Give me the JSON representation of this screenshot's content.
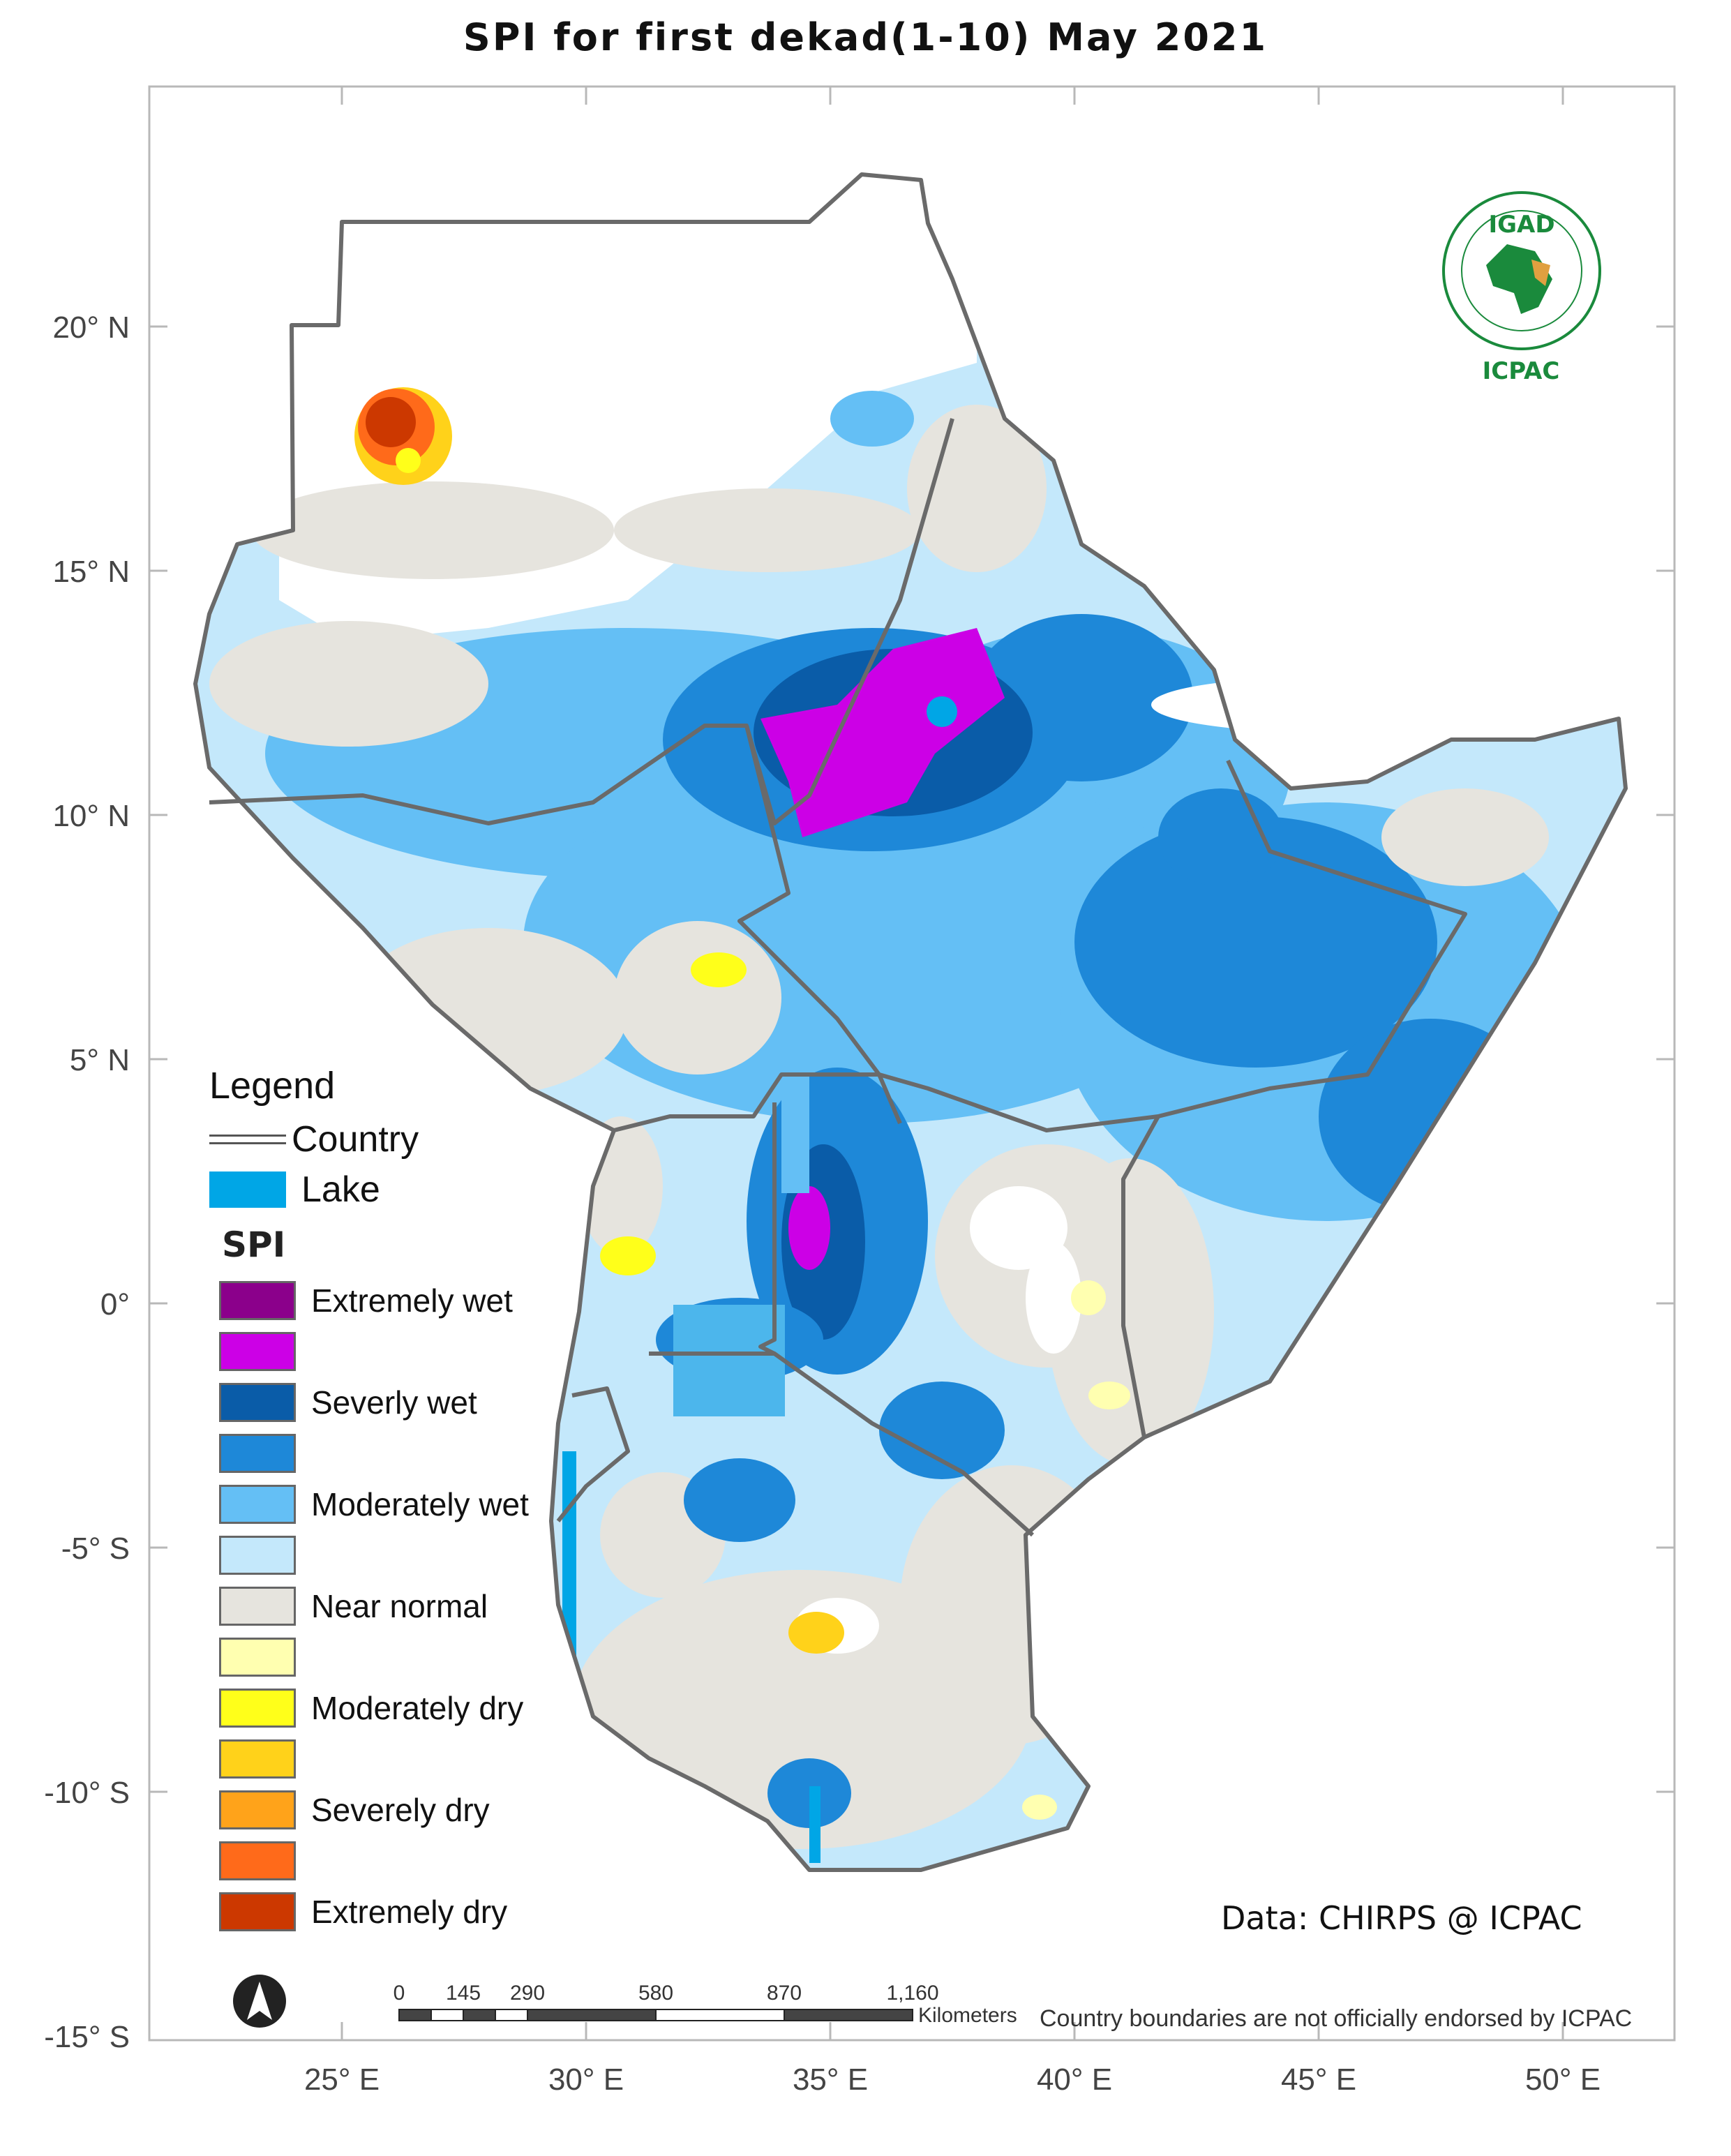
{
  "title": "SPI for  first dekad(1-10) May 2021",
  "axes": {
    "y_ticks": [
      "20° N",
      "15° N",
      "10° N",
      "5° N",
      "0°",
      "-5° S",
      "-10° S",
      "-15° S"
    ],
    "x_ticks": [
      "25° E",
      "30° E",
      "35° E",
      "40° E",
      "45° E",
      "50° E"
    ]
  },
  "legend": {
    "title": "Legend",
    "country_label": "Country",
    "lake_label": "Lake",
    "spi_title": "SPI",
    "classes": [
      {
        "label": "Extremely wet",
        "color": "#8b008b"
      },
      {
        "label": "",
        "color": "#cc00e6"
      },
      {
        "label": "Severly wet",
        "color": "#0a5ca8"
      },
      {
        "label": "",
        "color": "#1e88d8"
      },
      {
        "label": "Moderately wet",
        "color": "#64bff5"
      },
      {
        "label": "",
        "color": "#c4e8fb"
      },
      {
        "label": "Near normal",
        "color": "#e6e4de"
      },
      {
        "label": "",
        "color": "#ffffb0"
      },
      {
        "label": "Moderately dry",
        "color": "#ffff1a"
      },
      {
        "label": "",
        "color": "#ffd21a"
      },
      {
        "label": "Severely dry",
        "color": "#ffa31a"
      },
      {
        "label": "",
        "color": "#ff6a1a"
      },
      {
        "label": "Extremely dry",
        "color": "#cc3800"
      }
    ]
  },
  "scale_bar": {
    "ticks": [
      "0",
      "145",
      "290",
      "580",
      "870",
      "1,160"
    ],
    "unit": "Kilometers"
  },
  "credits": {
    "data": "Data: CHIRPS @ ICPAC",
    "disclaimer": "Country boundaries are not officially endorsed by ICPAC"
  },
  "logo": {
    "top_text": "IGAD",
    "bottom_text": "ICPAC"
  },
  "colors": {
    "lake": "#00a6e6",
    "border": "#6a6a6a"
  }
}
